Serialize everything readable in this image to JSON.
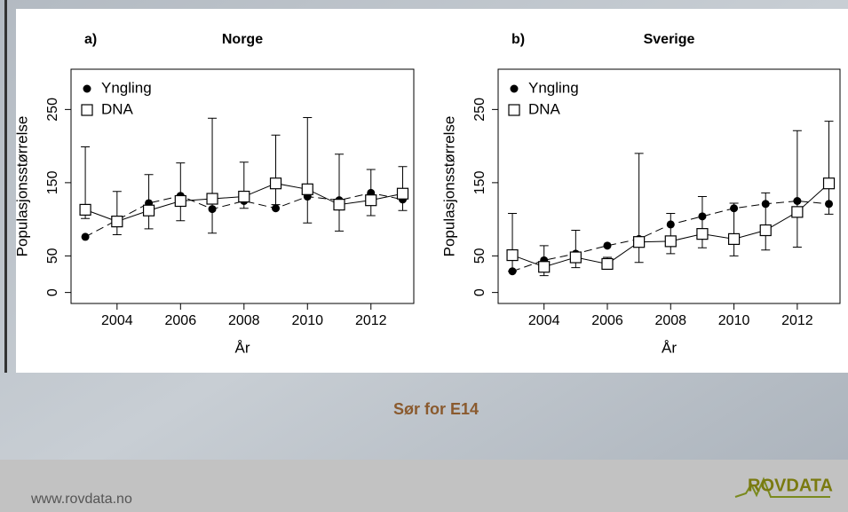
{
  "chart_data": [
    {
      "type": "line",
      "panel_label": "a)",
      "title": "Norge",
      "x_label": "År",
      "y_label": "Populasjonsstørrelse",
      "x": [
        2003,
        2004,
        2005,
        2006,
        2007,
        2008,
        2009,
        2010,
        2011,
        2012,
        2013
      ],
      "xlim": [
        2002.55,
        2013.35
      ],
      "xticks": [
        2004,
        2006,
        2008,
        2010,
        2012
      ],
      "ylim": [
        -15,
        305
      ],
      "yticks": [
        0,
        50,
        150,
        250
      ],
      "legend": "top-left",
      "series": [
        {
          "name": "Yngling",
          "color": "#000000",
          "marker": "filled-circle",
          "dashed": true,
          "values": [
            76,
            99,
            122,
            132,
            114,
            125,
            115,
            131,
            126,
            136,
            127
          ]
        },
        {
          "name": "DNA",
          "color": "#000000",
          "marker": "open-square",
          "dashed": false,
          "values": [
            113,
            97,
            112,
            125,
            128,
            131,
            149,
            141,
            120,
            126,
            135
          ],
          "lower": [
            101,
            79,
            87,
            98,
            81,
            115,
            120,
            95,
            84,
            105,
            112
          ],
          "upper": [
            199,
            138,
            161,
            177,
            238,
            178,
            215,
            239,
            189,
            168,
            172
          ]
        }
      ]
    },
    {
      "type": "line",
      "panel_label": "b)",
      "title": "Sverige",
      "x_label": "År",
      "y_label": "Populasjonsstørrelse",
      "x": [
        2003,
        2004,
        2005,
        2006,
        2007,
        2008,
        2009,
        2010,
        2011,
        2012,
        2013
      ],
      "xlim": [
        2002.55,
        2013.35
      ],
      "xticks": [
        2004,
        2006,
        2008,
        2010,
        2012
      ],
      "ylim": [
        -15,
        305
      ],
      "yticks": [
        0,
        50,
        150,
        250
      ],
      "legend": "top-left",
      "series": [
        {
          "name": "Yngling",
          "color": "#000000",
          "marker": "filled-circle",
          "dashed": true,
          "values": [
            29,
            44,
            53,
            64,
            73,
            93,
            104,
            115,
            121,
            125,
            121
          ]
        },
        {
          "name": "DNA",
          "color": "#000000",
          "marker": "open-square",
          "dashed": false,
          "values": [
            51,
            35,
            48,
            39,
            69,
            70,
            80,
            73,
            85,
            110,
            149
          ],
          "lower": [
            29,
            23,
            34,
            34,
            41,
            53,
            61,
            50,
            58,
            62,
            107
          ],
          "upper": [
            108,
            64,
            85,
            48,
            190,
            108,
            131,
            122,
            136,
            221,
            234
          ]
        }
      ]
    }
  ],
  "slide": {
    "caption": "Sør for E14",
    "url": "www.rovdata.no",
    "logo": "ROVDATA"
  }
}
